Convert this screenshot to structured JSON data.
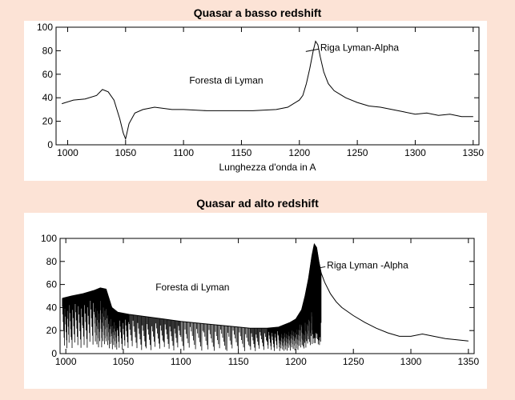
{
  "chart_data": [
    {
      "type": "line",
      "title": "Quasar a basso redshift",
      "xlabel": "Lunghezza d'onda in A",
      "ylabel": "",
      "xlim": [
        990,
        1355
      ],
      "ylim": [
        0,
        100
      ],
      "xticks": [
        1000,
        1050,
        1100,
        1150,
        1200,
        1250,
        1300,
        1350
      ],
      "yticks": [
        0,
        20,
        40,
        60,
        80,
        100
      ],
      "series": [
        {
          "x": [
            995,
            1005,
            1015,
            1025,
            1030,
            1035,
            1040,
            1045,
            1048,
            1050,
            1053,
            1058,
            1065,
            1075,
            1090,
            1100,
            1120,
            1140,
            1160,
            1180,
            1190,
            1195,
            1200,
            1203,
            1206,
            1209,
            1212,
            1214,
            1216,
            1218,
            1221,
            1225,
            1230,
            1235,
            1240,
            1250,
            1260,
            1270,
            1280,
            1290,
            1300,
            1310,
            1320,
            1330,
            1340,
            1350
          ],
          "y": [
            35,
            38,
            39,
            42,
            47,
            45,
            38,
            22,
            10,
            5,
            18,
            27,
            30,
            32,
            30,
            30,
            29,
            29,
            29,
            30,
            32,
            35,
            38,
            42,
            52,
            65,
            80,
            88,
            85,
            75,
            62,
            52,
            46,
            43,
            40,
            36,
            33,
            32,
            30,
            28,
            26,
            27,
            25,
            26,
            24,
            24
          ]
        }
      ],
      "annotations": [
        {
          "text": "Riga Lyman-Alpha",
          "x": 1218,
          "y": 80
        },
        {
          "text": "Foresta di Lyman",
          "x": 1105,
          "y": 52
        }
      ]
    },
    {
      "type": "line",
      "title": "Quasar ad alto redshift",
      "xlabel": "",
      "ylabel": "",
      "xlim": [
        995,
        1355
      ],
      "ylim": [
        0,
        100
      ],
      "xticks": [
        1000,
        1050,
        1100,
        1150,
        1200,
        1250,
        1300,
        1350
      ],
      "yticks": [
        0,
        20,
        40,
        60,
        80,
        100
      ],
      "series": [
        {
          "x": [
            997,
            1005,
            1015,
            1025,
            1030,
            1035,
            1040,
            1045,
            1055,
            1070,
            1085,
            1100,
            1120,
            1140,
            1160,
            1175,
            1185,
            1190,
            1195,
            1200,
            1205,
            1208,
            1211,
            1214,
            1216,
            1218,
            1220,
            1222,
            1225,
            1230,
            1235,
            1240,
            1250,
            1260,
            1270,
            1280,
            1290,
            1300,
            1310,
            1320,
            1330,
            1340,
            1350
          ],
          "y": [
            48,
            50,
            52,
            55,
            57,
            56,
            40,
            36,
            34,
            32,
            30,
            28,
            26,
            24,
            22,
            22,
            23,
            25,
            27,
            30,
            38,
            50,
            65,
            85,
            95,
            92,
            80,
            70,
            62,
            52,
            45,
            40,
            33,
            27,
            22,
            18,
            15,
            15,
            17,
            15,
            13,
            12,
            11
          ]
        }
      ],
      "annotations": [
        {
          "text": "Riga Lyman -Alpha",
          "x": 1227,
          "y": 74
        },
        {
          "text": "Foresta di Lyman",
          "x": 1078,
          "y": 55
        }
      ]
    }
  ]
}
